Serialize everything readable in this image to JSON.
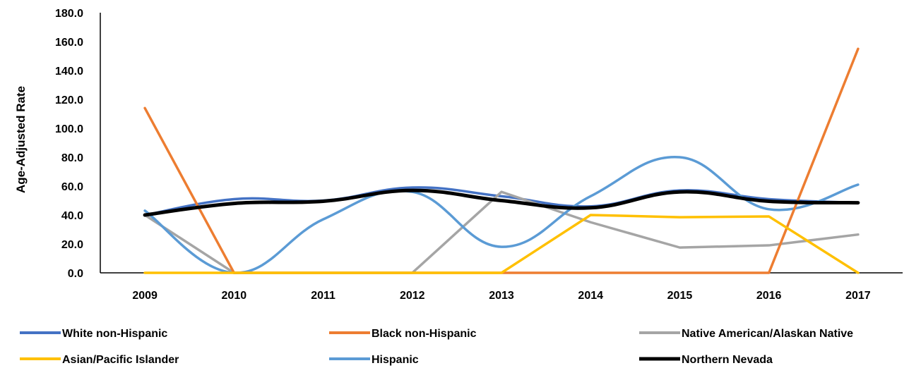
{
  "chart_data": {
    "type": "line",
    "title": "",
    "xlabel": "",
    "ylabel": "Age-Adjusted Rate",
    "categories": [
      "2009",
      "2010",
      "2011",
      "2012",
      "2013",
      "2014",
      "2015",
      "2016",
      "2017"
    ],
    "y_ticks": [
      "0.0",
      "20.0",
      "40.0",
      "60.0",
      "80.0",
      "100.0",
      "120.0",
      "140.0",
      "160.0",
      "180.0"
    ],
    "ylim": [
      0,
      180
    ],
    "grid": false,
    "smooth": true,
    "legend_position": "bottom",
    "series": [
      {
        "name": "White non-Hispanic",
        "color": "#4472C4",
        "values": [
          40,
          51,
          50,
          59,
          53,
          46,
          57,
          51,
          48.5
        ]
      },
      {
        "name": "Black non-Hispanic",
        "color": "#ED7D31",
        "values": [
          114,
          0,
          0,
          0,
          0,
          0,
          0,
          0,
          155
        ]
      },
      {
        "name": "Native American/Alaskan Native",
        "color": "#A5A5A5",
        "values": [
          40,
          0,
          0,
          0,
          56,
          35,
          17.5,
          19,
          26.5
        ]
      },
      {
        "name": "Asian/Pacific Islander",
        "color": "#FFC000",
        "values": [
          0,
          0,
          0,
          0,
          0,
          40,
          38.5,
          39,
          0
        ]
      },
      {
        "name": "Hispanic",
        "color": "#5B9BD5",
        "values": [
          43,
          0,
          37,
          56,
          18,
          53,
          80,
          44,
          61
        ]
      },
      {
        "name": "Northern Nevada",
        "color": "#000000",
        "values": [
          40,
          48,
          49.5,
          57,
          50,
          45,
          56,
          49.5,
          48.5
        ]
      }
    ]
  }
}
